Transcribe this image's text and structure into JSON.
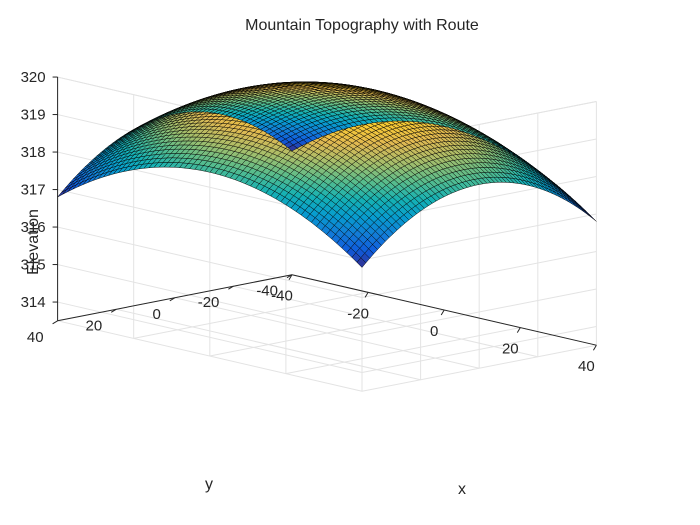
{
  "chart_data": {
    "type": "surface",
    "title": "Mountain Topography with Route",
    "xlabel": "x",
    "ylabel": "y",
    "zlabel": "Elevation",
    "xlim": [
      -40,
      40
    ],
    "ylim": [
      -40,
      40
    ],
    "zlim": [
      313.5,
      320
    ],
    "xticks": [
      -40,
      -20,
      0,
      20,
      40
    ],
    "yticks": [
      -40,
      -20,
      0,
      20,
      40
    ],
    "zticks": [
      314,
      315,
      316,
      317,
      318,
      319,
      320
    ],
    "surface": {
      "formula": "z = 320 - 0.001*(x^2 + y^2)",
      "peak": {
        "x": 0,
        "y": 0,
        "z": 320
      },
      "corner_elevation": 316.8,
      "mesh_resolution": 60,
      "colormap": "parula",
      "edge_color": "#000000"
    },
    "grid": true
  }
}
